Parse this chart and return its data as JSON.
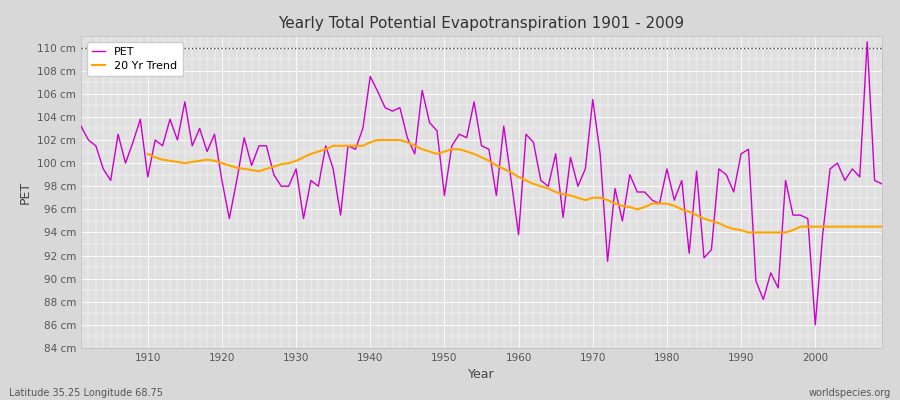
{
  "title": "Yearly Total Potential Evapotranspiration 1901 - 2009",
  "xlabel": "Year",
  "ylabel": "PET",
  "lat_lon_label": "Latitude 35.25 Longitude 68.75",
  "source_label": "worldspecies.org",
  "ylim": [
    84,
    111
  ],
  "xlim": [
    1901,
    2009
  ],
  "pet_color": "#CC00CC",
  "trend_color": "#FFA500",
  "background_color": "#D8D8D8",
  "plot_bg_color": "#E0E0E0",
  "legend_bg_color": "#FFFFFF",
  "top_dotted_y": 110,
  "years": [
    1901,
    1902,
    1903,
    1904,
    1905,
    1906,
    1907,
    1908,
    1909,
    1910,
    1911,
    1912,
    1913,
    1914,
    1915,
    1916,
    1917,
    1918,
    1919,
    1920,
    1921,
    1922,
    1923,
    1924,
    1925,
    1926,
    1927,
    1928,
    1929,
    1930,
    1931,
    1932,
    1933,
    1934,
    1935,
    1936,
    1937,
    1938,
    1939,
    1940,
    1941,
    1942,
    1943,
    1944,
    1945,
    1946,
    1947,
    1948,
    1949,
    1950,
    1951,
    1952,
    1953,
    1954,
    1955,
    1956,
    1957,
    1958,
    1959,
    1960,
    1961,
    1962,
    1963,
    1964,
    1965,
    1966,
    1967,
    1968,
    1969,
    1970,
    1971,
    1972,
    1973,
    1974,
    1975,
    1976,
    1977,
    1978,
    1979,
    1980,
    1981,
    1982,
    1983,
    1984,
    1985,
    1986,
    1987,
    1988,
    1989,
    1990,
    1991,
    1992,
    1993,
    1994,
    1995,
    1996,
    1997,
    1998,
    1999,
    2000,
    2001,
    2002,
    2003,
    2004,
    2005,
    2006,
    2007,
    2008,
    2009
  ],
  "pet_values": [
    103.2,
    102.0,
    101.5,
    99.5,
    98.5,
    102.5,
    100.0,
    101.8,
    103.8,
    98.8,
    102.0,
    101.5,
    103.8,
    102.0,
    105.3,
    101.5,
    103.0,
    101.0,
    102.5,
    98.5,
    95.2,
    98.5,
    102.2,
    99.8,
    101.5,
    101.5,
    99.0,
    98.0,
    98.0,
    99.5,
    95.2,
    98.5,
    98.0,
    101.5,
    99.5,
    95.5,
    101.5,
    101.2,
    103.0,
    107.5,
    106.2,
    104.8,
    104.5,
    104.8,
    102.2,
    100.8,
    106.3,
    103.5,
    102.8,
    97.2,
    101.5,
    102.5,
    102.2,
    105.3,
    101.5,
    101.2,
    97.2,
    103.2,
    98.5,
    93.8,
    102.5,
    101.8,
    98.5,
    98.0,
    100.8,
    95.3,
    100.5,
    98.0,
    99.5,
    105.5,
    100.8,
    91.5,
    97.8,
    95.0,
    99.0,
    97.5,
    97.5,
    96.8,
    96.5,
    99.5,
    96.8,
    98.5,
    92.2,
    99.3,
    91.8,
    92.5,
    99.5,
    99.0,
    97.5,
    100.8,
    101.2,
    89.8,
    88.2,
    90.5,
    89.2,
    98.5,
    95.5,
    95.5,
    95.2,
    86.0,
    93.8,
    99.5,
    100.0,
    98.5,
    99.5,
    98.8,
    110.5,
    98.5,
    98.2
  ],
  "trend_years": [
    1910,
    1911,
    1912,
    1913,
    1914,
    1915,
    1916,
    1917,
    1918,
    1919,
    1920,
    1921,
    1922,
    1923,
    1924,
    1925,
    1926,
    1927,
    1928,
    1929,
    1930,
    1931,
    1932,
    1933,
    1934,
    1935,
    1936,
    1937,
    1938,
    1939,
    1940,
    1941,
    1942,
    1943,
    1944,
    1945,
    1946,
    1947,
    1948,
    1949,
    1950,
    1951,
    1952,
    1953,
    1954,
    1955,
    1956,
    1957,
    1958,
    1959,
    1960,
    1961,
    1962,
    1963,
    1964,
    1965,
    1966,
    1967,
    1968,
    1969,
    1970,
    1971,
    1972,
    1973,
    1974,
    1975,
    1976,
    1977,
    1978,
    1979,
    1980,
    1981,
    1982,
    1983,
    1984,
    1985,
    1986,
    1987,
    1988,
    1989,
    1990,
    1991,
    1992,
    1993,
    1994,
    1995,
    1996,
    1997,
    1998,
    1999,
    2000,
    2001,
    2002,
    2003,
    2004,
    2005,
    2006,
    2007,
    2008,
    2009
  ],
  "trend_values": [
    100.8,
    100.5,
    100.3,
    100.2,
    100.1,
    100.0,
    100.1,
    100.2,
    100.3,
    100.2,
    100.0,
    99.8,
    99.6,
    99.5,
    99.4,
    99.3,
    99.5,
    99.7,
    99.9,
    100.0,
    100.2,
    100.5,
    100.8,
    101.0,
    101.2,
    101.5,
    101.5,
    101.5,
    101.5,
    101.5,
    101.8,
    102.0,
    102.0,
    102.0,
    102.0,
    101.8,
    101.5,
    101.2,
    101.0,
    100.8,
    101.0,
    101.2,
    101.2,
    101.0,
    100.8,
    100.5,
    100.2,
    99.8,
    99.5,
    99.2,
    98.8,
    98.5,
    98.2,
    98.0,
    97.8,
    97.5,
    97.3,
    97.2,
    97.0,
    96.8,
    97.0,
    97.0,
    96.8,
    96.5,
    96.3,
    96.2,
    96.0,
    96.2,
    96.5,
    96.5,
    96.5,
    96.3,
    96.0,
    95.8,
    95.5,
    95.2,
    95.0,
    94.8,
    94.5,
    94.3,
    94.2,
    94.0,
    94.0,
    94.0,
    94.0,
    94.0,
    94.0,
    94.2,
    94.5,
    94.5,
    94.5,
    94.5,
    94.5,
    94.5,
    94.5,
    94.5,
    94.5,
    94.5,
    94.5,
    94.5
  ]
}
